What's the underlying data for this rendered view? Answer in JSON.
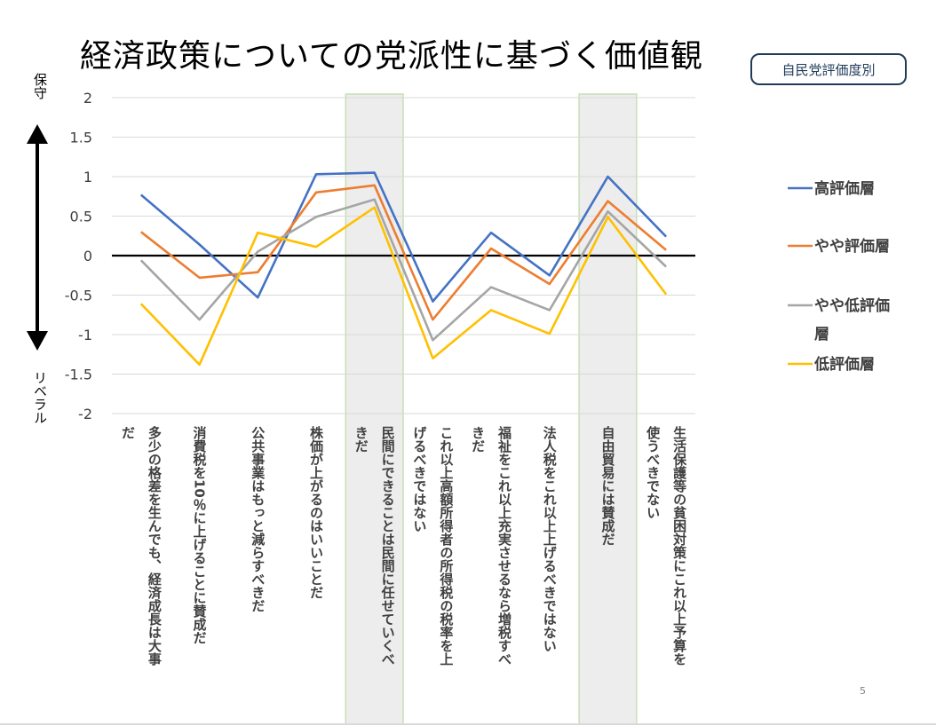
{
  "title": "経済政策についての党派性に基づく価値観",
  "badge": "自民党評価度別",
  "axis_end_labels": {
    "top": "保守",
    "bottom": "リベラル"
  },
  "slide_number": "5",
  "colors": {
    "high": "#4472C4",
    "mid_high": "#ED7D31",
    "mid_low": "#A5A5A5",
    "low": "#FFC000",
    "band_fill": "#EDEDED",
    "band_stroke": "#C5E0B4"
  },
  "chart_data": {
    "type": "line",
    "title": "",
    "ylim": [
      -2,
      2
    ],
    "yticks": [
      2,
      1.5,
      1,
      0.5,
      0,
      -0.5,
      -1,
      -1.5,
      -2
    ],
    "ytick_labels": [
      "2",
      "1.5",
      "1",
      "0.5",
      "0",
      "-0.5",
      "-1",
      "-1.5",
      "-2"
    ],
    "grid": true,
    "legend": "right",
    "highlighted_categories": [
      4,
      8
    ],
    "categories": [
      [
        "多少の格差を生んでも、経済成長は大事",
        "だ"
      ],
      [
        "消費税を10％に上げることに賛成だ"
      ],
      [
        "公共事業はもっと減らすべきだ"
      ],
      [
        "株価が上がるのはいいことだ"
      ],
      [
        "民間にできることは民間に任せていくべ",
        "きだ"
      ],
      [
        "これ以上高額所得者の所得税の税率を上",
        "げるべきではない"
      ],
      [
        "福祉をこれ以上充実させるなら増税すべ",
        "きだ"
      ],
      [
        "法人税をこれ以上上げるべきではない"
      ],
      [
        "自由貿易には賛成だ"
      ],
      [
        "生活保護等の貧困対策にこれ以上予算を",
        "使うべきでない"
      ]
    ],
    "series": [
      {
        "name": "高評価層",
        "color": "#4472C4",
        "values": [
          0.77,
          0.14,
          -0.53,
          1.03,
          1.05,
          -0.58,
          0.29,
          -0.25,
          1.0,
          0.24
        ]
      },
      {
        "name": "やや評価層",
        "color": "#ED7D31",
        "values": [
          0.3,
          -0.28,
          -0.21,
          0.8,
          0.89,
          -0.81,
          0.09,
          -0.36,
          0.69,
          0.07
        ]
      },
      {
        "name": "やや低評価層",
        "color": "#A5A5A5",
        "values": [
          -0.06,
          -0.81,
          0.05,
          0.49,
          0.71,
          -1.07,
          -0.4,
          -0.69,
          0.56,
          -0.14
        ]
      },
      {
        "name": "低評価層",
        "color": "#FFC000",
        "values": [
          -0.61,
          -1.38,
          0.29,
          0.11,
          0.61,
          -1.3,
          -0.69,
          -0.99,
          0.49,
          -0.49
        ]
      }
    ]
  }
}
